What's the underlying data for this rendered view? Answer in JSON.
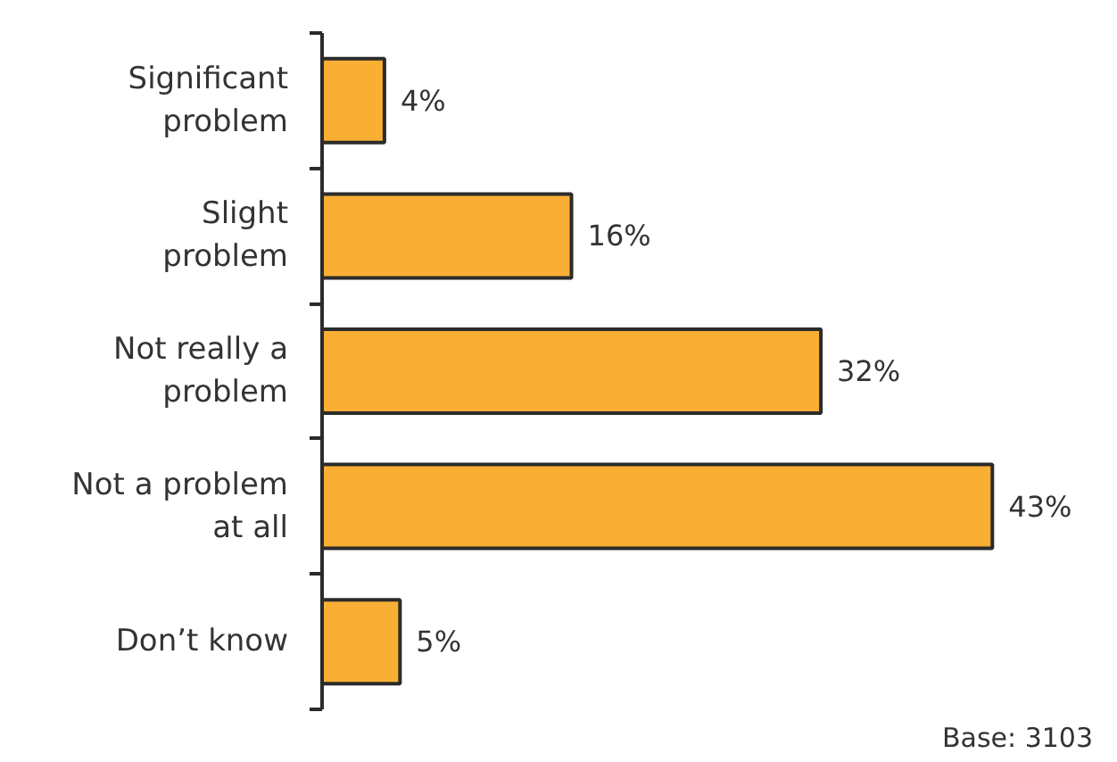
{
  "chart_data": {
    "type": "bar",
    "orientation": "horizontal",
    "categories": [
      "Significant problem",
      "Slight problem",
      "Not really a problem",
      "Not a problem at all",
      "Don’t know"
    ],
    "values": [
      4,
      16,
      32,
      43,
      5
    ],
    "value_labels": [
      "4%",
      "16%",
      "32%",
      "43%",
      "5%"
    ],
    "color": "#f9ae34",
    "tick_labels": "y",
    "grid": false,
    "annotations": [
      "Base: 3103"
    ]
  }
}
